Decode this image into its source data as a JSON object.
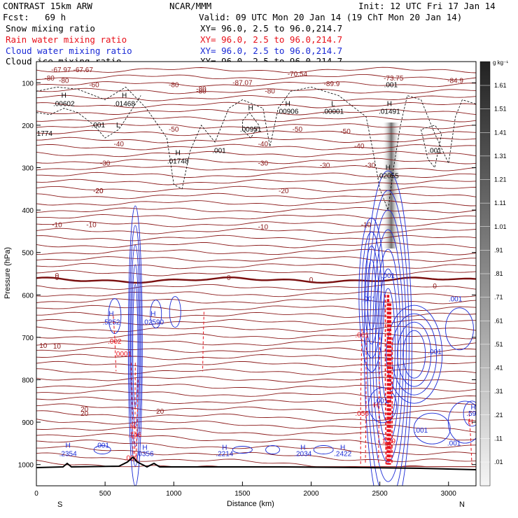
{
  "header": {
    "model": "CONTRAST 15km ARW",
    "org": "NCAR/MMM",
    "init": "Init: 12 UTC Fri 17 Jan 14",
    "fcst_label": "Fcst:",
    "fcst_value": "69 h",
    "valid": "Valid: 09 UTC Mon 20 Jan 14 (19 ChT Mon 20 Jan 14)",
    "xy": "XY=  96.0,  2.5 to  96.0,214.7",
    "fields": [
      {
        "name": "Snow mixing ratio",
        "color": "#000000"
      },
      {
        "name": "Rain water mixing ratio",
        "color": "#e8101a"
      },
      {
        "name": "Cloud water mixing ratio",
        "color": "#1a2ad6"
      },
      {
        "name": "Cloud ice mixing ratio",
        "color": "#000000"
      }
    ]
  },
  "colorbar": {
    "unit": "g kg⁻¹",
    "levels": [
      "1.61",
      "1.51",
      "1.41",
      "1.31",
      "1.21",
      "1.11",
      "1.01",
      ".91",
      ".81",
      ".71",
      ".61",
      ".51",
      ".41",
      ".31",
      ".21",
      ".11",
      ".01"
    ]
  },
  "colors": {
    "temperature": "#8b1a1a",
    "freezing": "#7a0f0f",
    "rain": "#e8101a",
    "cloud_water": "#1a2ad6",
    "ice": "#000000"
  },
  "chart_data": {
    "type": "cross-section",
    "xlabel": "Distance (km)",
    "ylabel": "Pressure (hPa)",
    "xlim": [
      0,
      3200
    ],
    "ylim": [
      1050,
      50
    ],
    "x_ticks": [
      "0",
      "500",
      "1000",
      "1500",
      "2000",
      "2500",
      "3000"
    ],
    "x_tick_values": [
      0,
      500,
      1000,
      1500,
      2000,
      2500,
      3000
    ],
    "y_ticks": [
      "100",
      "200",
      "300",
      "400",
      "500",
      "600",
      "700",
      "800",
      "900",
      "1000"
    ],
    "y_tick_values": [
      100,
      200,
      300,
      400,
      500,
      600,
      700,
      800,
      900,
      1000
    ],
    "endpoints": {
      "left": "S",
      "right": "N"
    },
    "temperature_isotherms": [
      {
        "label": "-80",
        "p": 90
      },
      {
        "label": "-67.97",
        "p": 70
      },
      {
        "label": "-67.67",
        "p": 70
      },
      {
        "label": "-60",
        "p": 105
      },
      {
        "label": "-80",
        "p": 120
      },
      {
        "label": "-87.07",
        "p": 100
      },
      {
        "label": "-70.54",
        "p": 80
      },
      {
        "label": "-89.9",
        "p": 103
      },
      {
        "label": "-73.75",
        "p": 90
      },
      {
        "label": "-84.9",
        "p": 95
      },
      {
        "label": "-80",
        "p": 115
      },
      {
        "label": "-50",
        "p": 210
      },
      {
        "label": "-40",
        "p": 245
      },
      {
        "label": "-30",
        "p": 290
      },
      {
        "label": "-20",
        "p": 355
      },
      {
        "label": "-10",
        "p": 435
      },
      {
        "label": "0",
        "p": 560
      },
      {
        "label": "10",
        "p": 720
      },
      {
        "label": "20",
        "p": 870
      }
    ],
    "cloud_ice_labels": [
      {
        "text": "H",
        "x": 200,
        "p": 130
      },
      {
        "text": ".00602",
        "x": 200,
        "p": 150
      },
      {
        "text": "H",
        "x": 640,
        "p": 130
      },
      {
        "text": ".01468",
        "x": 640,
        "p": 150
      },
      {
        "text": ".001",
        "x": 450,
        "p": 200
      },
      {
        "text": "L",
        "x": 595,
        "p": 200
      },
      {
        "text": "1774",
        "x": 60,
        "p": 220
      },
      {
        "text": "H",
        "x": 1030,
        "p": 265
      },
      {
        "text": ".01748",
        "x": 1030,
        "p": 285
      },
      {
        "text": "H",
        "x": 1560,
        "p": 160
      },
      {
        "text": ".00951",
        "x": 1560,
        "p": 210
      },
      {
        "text": ".001",
        "x": 1330,
        "p": 260
      },
      {
        "text": "H",
        "x": 1830,
        "p": 150
      },
      {
        "text": ".00906",
        "x": 1830,
        "p": 168
      },
      {
        "text": "L",
        "x": 2160,
        "p": 150
      },
      {
        "text": ".00001",
        "x": 2160,
        "p": 168
      },
      {
        "text": "H",
        "x": 2570,
        "p": 150
      },
      {
        "text": ".01491",
        "x": 2570,
        "p": 168
      },
      {
        "text": ".001",
        "x": 2580,
        "p": 105
      },
      {
        "text": ".001",
        "x": 2900,
        "p": 260
      },
      {
        "text": "H",
        "x": 2560,
        "p": 300
      },
      {
        "text": ".02055",
        "x": 2560,
        "p": 320
      }
    ],
    "cloud_water_labels": [
      {
        "text": "H",
        "x": 545,
        "p": 645
      },
      {
        "text": ".5252",
        "x": 545,
        "p": 665
      },
      {
        "text": "H",
        "x": 850,
        "p": 645
      },
      {
        "text": ".02590",
        "x": 850,
        "p": 665
      },
      {
        "text": "H",
        "x": 230,
        "p": 955
      },
      {
        "text": ".2354",
        "x": 230,
        "p": 975
      },
      {
        "text": ".001",
        "x": 480,
        "p": 955
      },
      {
        "text": "H",
        "x": 790,
        "p": 960
      },
      {
        "text": ".0356",
        "x": 790,
        "p": 975
      },
      {
        "text": "H",
        "x": 1370,
        "p": 960
      },
      {
        "text": ".2214",
        "x": 1370,
        "p": 975
      },
      {
        "text": "H",
        "x": 1940,
        "p": 960
      },
      {
        "text": ".2034",
        "x": 1940,
        "p": 975
      },
      {
        "text": "H",
        "x": 2230,
        "p": 960
      },
      {
        "text": ".2422",
        "x": 2230,
        "p": 975
      },
      {
        "text": ".001",
        "x": 2420,
        "p": 610
      },
      {
        "text": ".001",
        "x": 2560,
        "p": 555
      },
      {
        "text": ".001",
        "x": 2510,
        "p": 850
      },
      {
        "text": ".001",
        "x": 2900,
        "p": 735
      },
      {
        "text": ".001",
        "x": 3050,
        "p": 610
      },
      {
        "text": ".001",
        "x": 2800,
        "p": 920
      },
      {
        "text": "H",
        "x": 3180,
        "p": 865
      },
      {
        "text": ".596",
        "x": 3180,
        "p": 880
      },
      {
        "text": ".001",
        "x": 3040,
        "p": 950
      }
    ],
    "rain_labels": [
      {
        "text": ".002",
        "x": 570,
        "p": 710
      },
      {
        "text": ".0001",
        "x": 630,
        "p": 740
      },
      {
        "text": "H",
        "x": 700,
        "p": 910
      },
      {
        "text": ".146",
        "x": 715,
        "p": 930
      },
      {
        "text": ".001",
        "x": 690,
        "p": 985
      },
      {
        "text": ".001",
        "x": 2370,
        "p": 695
      },
      {
        "text": ".056",
        "x": 2370,
        "p": 880
      },
      {
        "text": "1.29",
        "x": 2565,
        "p": 945
      },
      {
        "text": "20",
        "x": 2565,
        "p": 960
      },
      {
        "text": "H",
        "x": 2470,
        "p": 860
      },
      {
        "text": "H",
        "x": 3160,
        "p": 900
      }
    ]
  }
}
